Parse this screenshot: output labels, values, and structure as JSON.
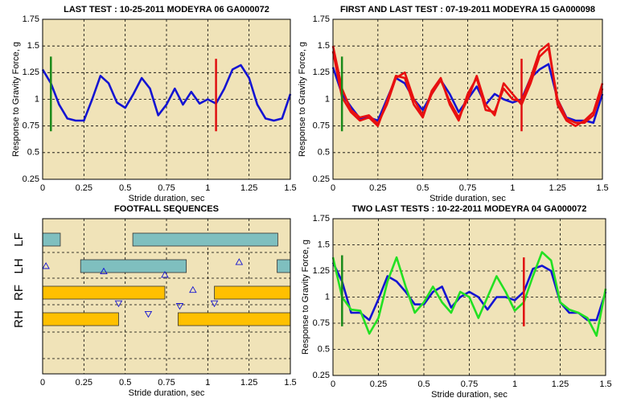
{
  "chart_data": [
    {
      "type": "line",
      "title": "LAST TEST : 10-25-2011 MODEYRA 06 GA000072",
      "x_label": "Stride duration, sec",
      "y_label": "Response to Gravity Force, g",
      "x": [
        0,
        0.05,
        0.1,
        0.15,
        0.2,
        0.25,
        0.3,
        0.35,
        0.4,
        0.45,
        0.5,
        0.55,
        0.6,
        0.65,
        0.7,
        0.75,
        0.8,
        0.85,
        0.9,
        0.95,
        1,
        1.05,
        1.1,
        1.15,
        1.2,
        1.25,
        1.3,
        1.35,
        1.4,
        1.45,
        1.5
      ],
      "series": [
        {
          "color": "#1414d2",
          "values": [
            1.28,
            1.15,
            0.95,
            0.82,
            0.8,
            0.8,
            1.0,
            1.22,
            1.15,
            0.97,
            0.92,
            1.05,
            1.2,
            1.1,
            0.85,
            0.95,
            1.1,
            0.95,
            1.07,
            0.96,
            1.0,
            0.96,
            1.1,
            1.28,
            1.32,
            1.2,
            0.95,
            0.82,
            0.8,
            0.82,
            1.05
          ]
        }
      ],
      "vlines": [
        {
          "x": 0.05,
          "y": [
            0.7,
            1.4
          ],
          "color": "#1a8a1a"
        },
        {
          "x": 1.05,
          "y": [
            0.7,
            1.38
          ],
          "color": "#e01010"
        }
      ],
      "xlim": [
        0,
        1.5
      ],
      "ylim": [
        0.25,
        1.75
      ],
      "xticks": [
        0,
        0.25,
        0.5,
        0.75,
        1,
        1.25,
        1.5
      ],
      "yticks": [
        0.25,
        0.5,
        0.75,
        1,
        1.25,
        1.5,
        1.75
      ],
      "grid": true
    },
    {
      "type": "line",
      "title": "FIRST AND LAST TEST : 07-19-2011 MODEYRA 15 GA000098",
      "x_label": "Stride duration, sec",
      "y_label": "Response to Gravity Force, g",
      "x": [
        0,
        0.05,
        0.1,
        0.15,
        0.2,
        0.25,
        0.3,
        0.35,
        0.4,
        0.45,
        0.5,
        0.55,
        0.6,
        0.65,
        0.7,
        0.75,
        0.8,
        0.85,
        0.9,
        0.95,
        1,
        1.05,
        1.1,
        1.15,
        1.2,
        1.25,
        1.3,
        1.35,
        1.4,
        1.45,
        1.5
      ],
      "series": [
        {
          "color": "#1414d2",
          "values": [
            1.3,
            1.05,
            0.93,
            0.82,
            0.83,
            0.8,
            1.0,
            1.2,
            1.15,
            1.0,
            0.9,
            1.05,
            1.18,
            1.05,
            0.88,
            1.0,
            1.12,
            0.95,
            1.05,
            1.0,
            0.97,
            1.0,
            1.2,
            1.28,
            1.33,
            1.0,
            0.83,
            0.8,
            0.8,
            0.78,
            1.05
          ]
        },
        {
          "color": "#e81010",
          "values": [
            1.5,
            1.1,
            0.9,
            0.83,
            0.85,
            0.77,
            0.95,
            1.2,
            1.25,
            1.0,
            0.85,
            1.05,
            1.18,
            0.98,
            0.83,
            1.0,
            1.22,
            0.95,
            0.85,
            1.15,
            1.05,
            0.95,
            1.15,
            1.4,
            1.48,
            1.0,
            0.82,
            0.78,
            0.78,
            0.85,
            1.1
          ]
        },
        {
          "color": "#e81010",
          "values": [
            1.45,
            1.02,
            0.88,
            0.8,
            0.83,
            0.75,
            0.98,
            1.22,
            1.2,
            0.95,
            0.83,
            1.08,
            1.2,
            0.95,
            0.8,
            1.05,
            1.2,
            0.9,
            0.88,
            1.1,
            1.0,
            0.98,
            1.2,
            1.45,
            1.52,
            0.95,
            0.8,
            0.75,
            0.8,
            0.88,
            1.15
          ]
        }
      ],
      "vlines": [
        {
          "x": 0.05,
          "y": [
            0.7,
            1.4
          ],
          "color": "#1a8a1a"
        },
        {
          "x": 1.05,
          "y": [
            0.7,
            1.38
          ],
          "color": "#e01010"
        }
      ],
      "xlim": [
        0,
        1.5
      ],
      "ylim": [
        0.25,
        1.75
      ],
      "xticks": [
        0,
        0.25,
        0.5,
        0.75,
        1,
        1.25,
        1.5
      ],
      "yticks": [
        0.25,
        0.5,
        0.75,
        1,
        1.25,
        1.5,
        1.75
      ],
      "grid": true
    },
    {
      "type": "gantt",
      "title": "FOOTFALL SEQUENCES",
      "x_label": "Stride duration, sec",
      "rows": [
        {
          "label": "LF",
          "color": "#7fbfbf",
          "spans": [
            [
              0,
              0.107
            ],
            [
              0.546,
              1.424
            ]
          ]
        },
        {
          "label": "LH",
          "color": "#7fbfbf",
          "spans": [
            [
              0.23,
              0.87
            ],
            [
              1.42,
              1.5
            ]
          ]
        },
        {
          "label": "RF",
          "color": "#ffc000",
          "spans": [
            [
              0,
              0.74
            ],
            [
              1.04,
              1.5
            ]
          ]
        },
        {
          "label": "RH",
          "color": "#ffc000",
          "spans": [
            [
              0,
              0.46
            ],
            [
              0.82,
              1.5
            ]
          ]
        }
      ],
      "markers": [
        {
          "shape": "triangle-up",
          "color": "#1414d2",
          "x": [
            0.02,
            0.37,
            0.74,
            0.91,
            1.19
          ],
          "y": [
            1.0,
            1.2,
            1.33,
            1.9,
            0.85
          ]
        },
        {
          "shape": "triangle-down",
          "color": "#1414d2",
          "x": [
            0.46,
            0.64,
            0.83,
            1.04
          ],
          "y": [
            2.4,
            2.8,
            2.5,
            2.4
          ]
        }
      ],
      "xlim": [
        0,
        1.5
      ],
      "xticks": [
        0,
        0.25,
        0.5,
        0.75,
        1,
        1.25,
        1.5
      ],
      "grid": true
    },
    {
      "type": "line",
      "title": "TWO LAST TESTS : 10-22-2011 MODEYRA 04 GA000072",
      "x_label": "Stride duration, sec",
      "y_label": "Response to Gravity Force, g",
      "x": [
        0,
        0.05,
        0.1,
        0.15,
        0.2,
        0.25,
        0.3,
        0.35,
        0.4,
        0.45,
        0.5,
        0.55,
        0.6,
        0.65,
        0.7,
        0.75,
        0.8,
        0.85,
        0.9,
        0.95,
        1,
        1.05,
        1.1,
        1.15,
        1.2,
        1.25,
        1.3,
        1.35,
        1.4,
        1.45,
        1.5
      ],
      "series": [
        {
          "color": "#1414d2",
          "values": [
            1.33,
            1.15,
            0.85,
            0.85,
            0.78,
            0.98,
            1.2,
            1.15,
            1.05,
            0.93,
            0.93,
            1.05,
            1.1,
            0.9,
            1.0,
            1.05,
            1.0,
            0.88,
            1.0,
            1.0,
            0.97,
            1.05,
            1.27,
            1.3,
            1.25,
            0.95,
            0.85,
            0.85,
            0.78,
            0.78,
            1.05
          ]
        },
        {
          "color": "#22e022",
          "values": [
            1.38,
            1.0,
            0.88,
            0.87,
            0.65,
            0.8,
            1.15,
            1.38,
            1.1,
            0.85,
            0.95,
            1.1,
            0.95,
            0.85,
            1.05,
            1.0,
            0.8,
            1.0,
            1.2,
            1.05,
            0.87,
            0.95,
            1.2,
            1.43,
            1.35,
            0.95,
            0.88,
            0.85,
            0.8,
            0.63,
            1.08
          ]
        }
      ],
      "vlines": [
        {
          "x": 0.05,
          "y": [
            0.72,
            1.4
          ],
          "color": "#1a8a1a"
        },
        {
          "x": 1.05,
          "y": [
            0.72,
            1.38
          ],
          "color": "#e01010"
        }
      ],
      "xlim": [
        0,
        1.5
      ],
      "ylim": [
        0.25,
        1.75
      ],
      "xticks": [
        0,
        0.25,
        0.5,
        0.75,
        1,
        1.25,
        1.5
      ],
      "yticks": [
        0.25,
        0.5,
        0.75,
        1,
        1.25,
        1.5,
        1.75
      ],
      "grid": true
    }
  ]
}
